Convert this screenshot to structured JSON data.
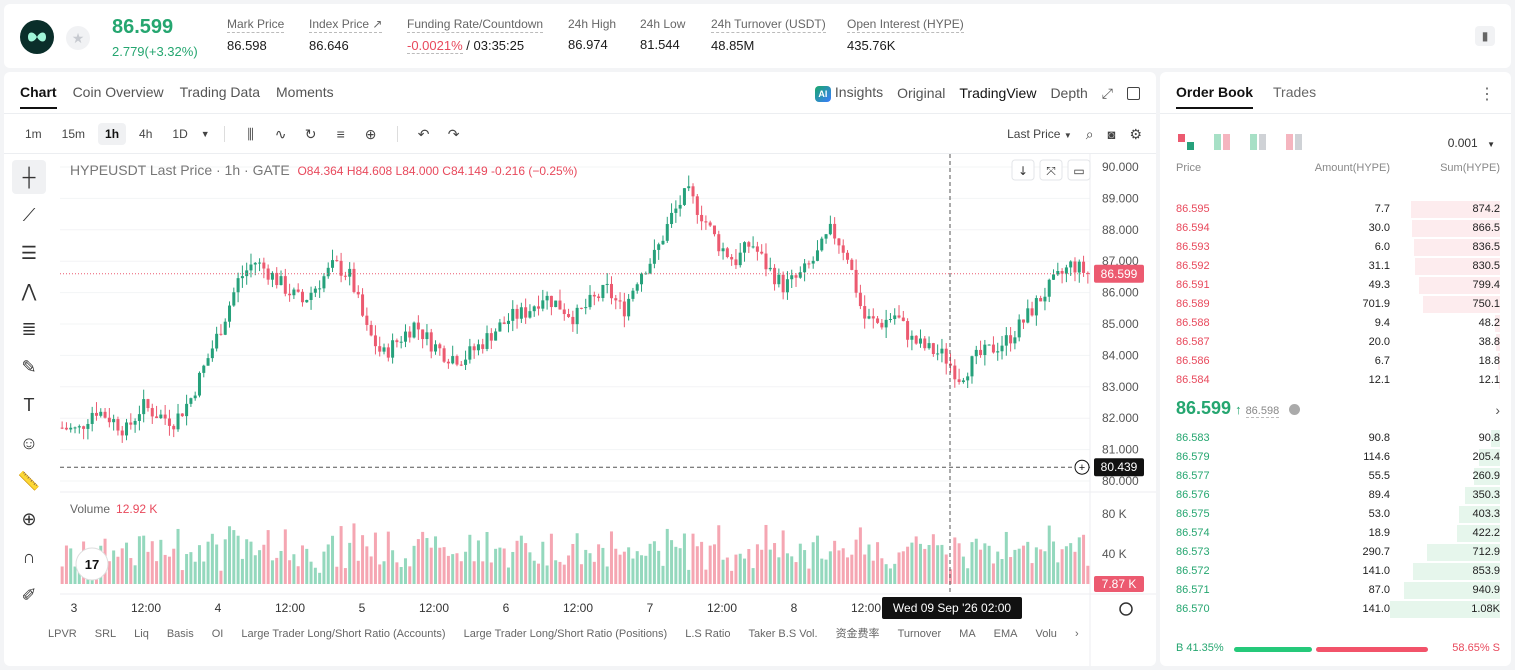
{
  "header": {
    "last_price": "86.599",
    "change": "2.779(+3.32%)",
    "stats": [
      {
        "label": "Mark Price",
        "value": "86.598"
      },
      {
        "label": "Index Price ↗",
        "value": "86.646"
      },
      {
        "label": "Funding Rate/Countdown",
        "value_neg": "-0.0021%",
        "value": " / 03:35:25"
      },
      {
        "label": "24h High",
        "value": "86.974"
      },
      {
        "label": "24h Low",
        "value": "81.544"
      },
      {
        "label": "24h Turnover (USDT)",
        "value": "48.85M"
      },
      {
        "label": "Open Interest (HYPE)",
        "value": "435.76K"
      }
    ]
  },
  "chart_tabs": [
    "Chart",
    "Coin Overview",
    "Trading Data",
    "Moments"
  ],
  "view_tabs": {
    "insights": "Insights",
    "original": "Original",
    "tradingview": "TradingView",
    "depth": "Depth"
  },
  "timeframes": [
    "1m",
    "15m",
    "1h",
    "4h",
    "1D"
  ],
  "price_source": "Last Price",
  "legend": {
    "title": "HYPEUSDT Last Price · 1h · GATE",
    "o": "O84.364",
    "h": "H84.608",
    "l": "L84.000",
    "c": "C84.149",
    "chg": "-0.216 (−0.25%)"
  },
  "volume": {
    "label": "Volume",
    "value": "12.92 K"
  },
  "indicators": [
    "LPVR",
    "SRL",
    "Liq",
    "Basis",
    "OI",
    "Large Trader Long/Short Ratio (Accounts)",
    "Large Trader Long/Short Ratio (Positions)",
    "L.S Ratio",
    "Taker B.S Vol.",
    "资金费率",
    "Turnover",
    "MA",
    "EMA",
    "Volu"
  ],
  "crosshair": {
    "price": "80.439",
    "time": "Wed 09 Sep '26   02:00"
  },
  "current_price_tag": "86.599",
  "volume_tag": "7.87 K",
  "chart_data": {
    "type": "candlestick",
    "title": "HYPEUSDT Last Price · 1h · GATE",
    "y_ticks": [
      "90.000",
      "89.000",
      "88.000",
      "87.000",
      "86.000",
      "85.000",
      "84.000",
      "83.000",
      "82.000",
      "81.000",
      "80.000"
    ],
    "ylim": [
      80.0,
      90.0
    ],
    "x_ticks": [
      "3",
      "12:00",
      "4",
      "12:00",
      "5",
      "12:00",
      "6",
      "12:00",
      "7",
      "12:00",
      "8",
      "12:00",
      "9",
      "10"
    ],
    "volume_ticks": [
      "80 K",
      "40 K"
    ],
    "colors": {
      "up": "#26a17b",
      "down": "#ec5a70"
    },
    "close_path": [
      81.7,
      81.6,
      82.3,
      82.0,
      81.6,
      82.4,
      82.1,
      81.9,
      82.6,
      83.8,
      85.0,
      86.4,
      87.0,
      86.6,
      86.1,
      85.7,
      86.3,
      86.9,
      86.5,
      84.8,
      84.0,
      84.5,
      85.0,
      84.4,
      84.0,
      83.9,
      84.3,
      84.8,
      85.2,
      85.4,
      85.9,
      85.6,
      85.2,
      85.7,
      86.1,
      85.4,
      86.6,
      87.2,
      88.4,
      89.2,
      88.4,
      87.5,
      87.0,
      87.6,
      86.8,
      86.2,
      86.5,
      87.1,
      88.0,
      87.2,
      85.2,
      85.0,
      85.3,
      84.5,
      84.2,
      84.0,
      83.3,
      83.9,
      84.2,
      84.5,
      85.1,
      85.8,
      86.4,
      86.9,
      86.6
    ]
  },
  "orderbook": {
    "tabs": [
      "Order Book",
      "Trades"
    ],
    "precision": "0.001",
    "headers": {
      "price": "Price",
      "amount": "Amount(HYPE)",
      "sum": "Sum(HYPE)"
    },
    "asks": [
      {
        "price": "86.595",
        "amount": "7.7",
        "sum": "874.2",
        "depth": 0.81
      },
      {
        "price": "86.594",
        "amount": "30.0",
        "sum": "866.5",
        "depth": 0.8
      },
      {
        "price": "86.593",
        "amount": "6.0",
        "sum": "836.5",
        "depth": 0.78
      },
      {
        "price": "86.592",
        "amount": "31.1",
        "sum": "830.5",
        "depth": 0.77
      },
      {
        "price": "86.591",
        "amount": "49.3",
        "sum": "799.4",
        "depth": 0.74
      },
      {
        "price": "86.589",
        "amount": "701.9",
        "sum": "750.1",
        "depth": 0.7
      },
      {
        "price": "86.588",
        "amount": "9.4",
        "sum": "48.2",
        "depth": 0.05
      },
      {
        "price": "86.587",
        "amount": "20.0",
        "sum": "38.8",
        "depth": 0.04
      },
      {
        "price": "86.586",
        "amount": "6.7",
        "sum": "18.8",
        "depth": 0.02
      },
      {
        "price": "86.584",
        "amount": "12.1",
        "sum": "12.1",
        "depth": 0.01
      }
    ],
    "mid_price": "86.599",
    "mark": "86.598",
    "bids": [
      {
        "price": "86.583",
        "amount": "90.8",
        "sum": "90.8",
        "depth": 0.08
      },
      {
        "price": "86.579",
        "amount": "114.6",
        "sum": "205.4",
        "depth": 0.19
      },
      {
        "price": "86.577",
        "amount": "55.5",
        "sum": "260.9",
        "depth": 0.24
      },
      {
        "price": "86.576",
        "amount": "89.4",
        "sum": "350.3",
        "depth": 0.32
      },
      {
        "price": "86.575",
        "amount": "53.0",
        "sum": "403.3",
        "depth": 0.37
      },
      {
        "price": "86.574",
        "amount": "18.9",
        "sum": "422.2",
        "depth": 0.39
      },
      {
        "price": "86.573",
        "amount": "290.7",
        "sum": "712.9",
        "depth": 0.66
      },
      {
        "price": "86.572",
        "amount": "141.0",
        "sum": "853.9",
        "depth": 0.79
      },
      {
        "price": "86.571",
        "amount": "87.0",
        "sum": "940.9",
        "depth": 0.87
      },
      {
        "price": "86.570",
        "amount": "141.0",
        "sum": "1.08K",
        "depth": 1.0
      }
    ],
    "buy_ratio": "B 41.35%",
    "sell_ratio": "58.65% S",
    "buy_fraction": 0.4135
  }
}
